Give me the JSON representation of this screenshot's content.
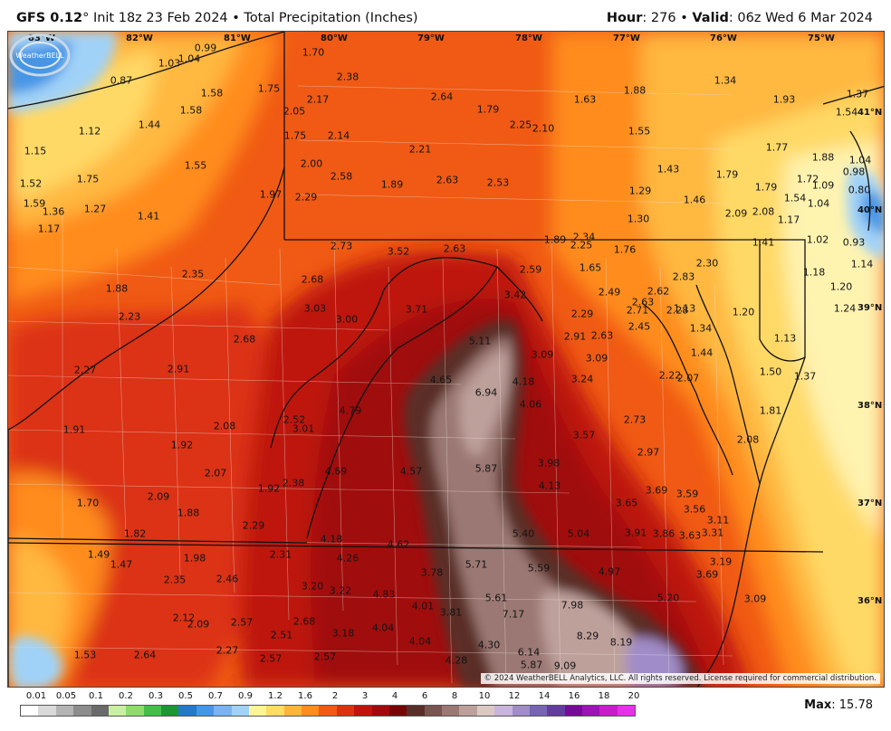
{
  "header": {
    "model": "GFS 0.12",
    "degree": "°",
    "init": "Init 18z 23 Feb 2024",
    "sep": "•",
    "product": "Total Precipitation (Inches)",
    "hour_label": "Hour",
    "hour_value": ": 276",
    "valid_label": "Valid",
    "valid_value": ": 06z Wed 6 Mar 2024"
  },
  "copyright": "© 2024 WeatherBELL Analytics, LLC. All rights reserved. License required for commercial distribution.",
  "logo_text": "WeatherBELL",
  "max": {
    "label": "Max",
    "value": ": 15.78"
  },
  "longitudes": [
    "83°W",
    "82°W",
    "81°W",
    "80°W",
    "79°W",
    "78°W",
    "77°W",
    "76°W",
    "75°W"
  ],
  "latitudes": [
    "41°N",
    "40°N",
    "39°N",
    "38°N",
    "37°N",
    "36°N"
  ],
  "legend": {
    "ticks": [
      "0.01",
      "0.05",
      "0.1",
      "0.2",
      "0.3",
      "0.5",
      "0.7",
      "0.9",
      "1.2",
      "1.6",
      "2",
      "3",
      "4",
      "6",
      "8",
      "10",
      "12",
      "14",
      "16",
      "18",
      "20"
    ],
    "colors": [
      "#ffffff",
      "#d9d9d9",
      "#b4b4b4",
      "#8c8c8c",
      "#6a6a6a",
      "#c8f0a0",
      "#8cdc6e",
      "#46be46",
      "#1e9632",
      "#2878c8",
      "#4696e6",
      "#78b4f0",
      "#a0d2f8",
      "#fff596",
      "#ffdc64",
      "#ffb43c",
      "#ff8c1e",
      "#f05a14",
      "#dc3214",
      "#be140a",
      "#a00a0a",
      "#780505",
      "#5a2d28",
      "#785550",
      "#9b7873",
      "#bea09b",
      "#dcc8c3",
      "#c8b4dc",
      "#a08cc8",
      "#7864b4",
      "#643c9b",
      "#780a96",
      "#9b14b4",
      "#c81ec8",
      "#e632e6"
    ]
  },
  "colors": {
    "pale": "#fff3b0",
    "yellow": "#ffd966",
    "light_orange": "#ffb840",
    "orange": "#ff8c1e",
    "red_orange": "#f05a14",
    "red": "#dc3214",
    "dark_red": "#be140a",
    "maroon": "#a00a0a",
    "brown": "#5a2d28",
    "mauve": "#9b7873",
    "pink": "#bea09b",
    "light_blue": "#a0d2f8",
    "blue": "#4696e6"
  },
  "values": [
    {
      "t": "0.99"
    },
    {
      "t": "1.03"
    },
    {
      "t": "1.04"
    },
    {
      "t": "0.87"
    },
    {
      "t": "1.58"
    },
    {
      "t": "1.75"
    },
    {
      "t": "1.58"
    },
    {
      "t": "1.12"
    },
    {
      "t": "1.44"
    },
    {
      "t": "1.15"
    },
    {
      "t": "1.55"
    },
    {
      "t": "1.52"
    },
    {
      "t": "1.75"
    },
    {
      "t": "1.59"
    },
    {
      "t": "1.36"
    },
    {
      "t": "1.27"
    },
    {
      "t": "1.41"
    },
    {
      "t": "1.17"
    },
    {
      "t": "1.97"
    },
    {
      "t": "1.70"
    },
    {
      "t": "2.38"
    },
    {
      "t": "2.17"
    },
    {
      "t": "2.05"
    },
    {
      "t": "2.64"
    },
    {
      "t": "1.79"
    },
    {
      "t": "1.63"
    },
    {
      "t": "1.88"
    },
    {
      "t": "1.34"
    },
    {
      "t": "1.37"
    },
    {
      "t": "1.93"
    },
    {
      "t": "1.54"
    },
    {
      "t": "1.75"
    },
    {
      "t": "2.14"
    },
    {
      "t": "2.25"
    },
    {
      "t": "2.10"
    },
    {
      "t": "1.55"
    },
    {
      "t": "2.21"
    },
    {
      "t": "2.00"
    },
    {
      "t": "1.77"
    },
    {
      "t": "1.88"
    },
    {
      "t": "1.04"
    },
    {
      "t": "2.58"
    },
    {
      "t": "1.89"
    },
    {
      "t": "2.63"
    },
    {
      "t": "2.53"
    },
    {
      "t": "1.43"
    },
    {
      "t": "1.79"
    },
    {
      "t": "1.72"
    },
    {
      "t": "0.98"
    },
    {
      "t": "1.09"
    },
    {
      "t": "0.80"
    },
    {
      "t": "2.29"
    },
    {
      "t": "1.29"
    },
    {
      "t": "1.46"
    },
    {
      "t": "1.79"
    },
    {
      "t": "1.54"
    },
    {
      "t": "1.04"
    },
    {
      "t": "2.09"
    },
    {
      "t": "2.08"
    },
    {
      "t": "1.30"
    },
    {
      "t": "1.17"
    },
    {
      "t": "1.89"
    },
    {
      "t": "2.34"
    },
    {
      "t": "2.25"
    },
    {
      "t": "1.76"
    },
    {
      "t": "1.41"
    },
    {
      "t": "1.02"
    },
    {
      "t": "0.93"
    },
    {
      "t": "2.73"
    },
    {
      "t": "3.52"
    },
    {
      "t": "2.63"
    },
    {
      "t": "1.65"
    },
    {
      "t": "2.59"
    },
    {
      "t": "2.30"
    },
    {
      "t": "1.14"
    },
    {
      "t": "1.18"
    },
    {
      "t": "2.35"
    },
    {
      "t": "2.68"
    },
    {
      "t": "2.83"
    },
    {
      "t": "1.88"
    },
    {
      "t": "3.42"
    },
    {
      "t": "2.49"
    },
    {
      "t": "2.62"
    },
    {
      "t": "1.20"
    },
    {
      "t": "2.63"
    },
    {
      "t": "1.13"
    },
    {
      "t": "3.03"
    },
    {
      "t": "3.71"
    },
    {
      "t": "2.29"
    },
    {
      "t": "2.71"
    },
    {
      "t": "2.28"
    },
    {
      "t": "1.24"
    },
    {
      "t": "2.23"
    },
    {
      "t": "3.00"
    },
    {
      "t": "2.45"
    },
    {
      "t": "1.20"
    },
    {
      "t": "1.34"
    },
    {
      "t": "2.68"
    },
    {
      "t": "5.11"
    },
    {
      "t": "2.91"
    },
    {
      "t": "2.63"
    },
    {
      "t": "1.13"
    },
    {
      "t": "3.09"
    },
    {
      "t": "1.44"
    },
    {
      "t": "3.09"
    },
    {
      "t": "2.27"
    },
    {
      "t": "2.91"
    },
    {
      "t": "2.22"
    },
    {
      "t": "2.07"
    },
    {
      "t": "1.50"
    },
    {
      "t": "4.65"
    },
    {
      "t": "4.18"
    },
    {
      "t": "3.24"
    },
    {
      "t": "1.37"
    },
    {
      "t": "6.94"
    },
    {
      "t": "4.06"
    },
    {
      "t": "4.79"
    },
    {
      "t": "1.81"
    },
    {
      "t": "2.73"
    },
    {
      "t": "2.52"
    },
    {
      "t": "1.91"
    },
    {
      "t": "2.08"
    },
    {
      "t": "3.01"
    },
    {
      "t": "3.57"
    },
    {
      "t": "2.08"
    },
    {
      "t": "1.92"
    },
    {
      "t": "2.97"
    },
    {
      "t": "3.98"
    },
    {
      "t": "2.07"
    },
    {
      "t": "4.69"
    },
    {
      "t": "4.57"
    },
    {
      "t": "5.87"
    },
    {
      "t": "2.38"
    },
    {
      "t": "1.92"
    },
    {
      "t": "4.13"
    },
    {
      "t": "3.69"
    },
    {
      "t": "3.59"
    },
    {
      "t": "2.09"
    },
    {
      "t": "1.70"
    },
    {
      "t": "3.65"
    },
    {
      "t": "3.56"
    },
    {
      "t": "1.88"
    },
    {
      "t": "3.11"
    },
    {
      "t": "2.29"
    },
    {
      "t": "1.82"
    },
    {
      "t": "5.40"
    },
    {
      "t": "5.04"
    },
    {
      "t": "3.91"
    },
    {
      "t": "3.86"
    },
    {
      "t": "3.63"
    },
    {
      "t": "3.31"
    },
    {
      "t": "4.18"
    },
    {
      "t": "4.62"
    },
    {
      "t": "1.49"
    },
    {
      "t": "1.98"
    },
    {
      "t": "2.31"
    },
    {
      "t": "4.26"
    },
    {
      "t": "1.47"
    },
    {
      "t": "5.71"
    },
    {
      "t": "3.19"
    },
    {
      "t": "3.78"
    },
    {
      "t": "5.59"
    },
    {
      "t": "4.97"
    },
    {
      "t": "3.69"
    },
    {
      "t": "2.35"
    },
    {
      "t": "2.46"
    },
    {
      "t": "3.20"
    },
    {
      "t": "3.22"
    },
    {
      "t": "4.83"
    },
    {
      "t": "5.61"
    },
    {
      "t": "5.20"
    },
    {
      "t": "3.09"
    },
    {
      "t": "4.01"
    },
    {
      "t": "7.98"
    },
    {
      "t": "3.81"
    },
    {
      "t": "7.17"
    },
    {
      "t": "2.12"
    },
    {
      "t": "2.68"
    },
    {
      "t": "2.09"
    },
    {
      "t": "2.57"
    },
    {
      "t": "2.51"
    },
    {
      "t": "3.18"
    },
    {
      "t": "4.04"
    },
    {
      "t": "8.29"
    },
    {
      "t": "8.19"
    },
    {
      "t": "1.53"
    },
    {
      "t": "4.04"
    },
    {
      "t": "4.30"
    },
    {
      "t": "2.64"
    },
    {
      "t": "2.27"
    },
    {
      "t": "6.14"
    },
    {
      "t": "2.57"
    },
    {
      "t": "2.57"
    },
    {
      "t": "4.28"
    },
    {
      "t": "5.87"
    },
    {
      "t": "9.09"
    }
  ]
}
